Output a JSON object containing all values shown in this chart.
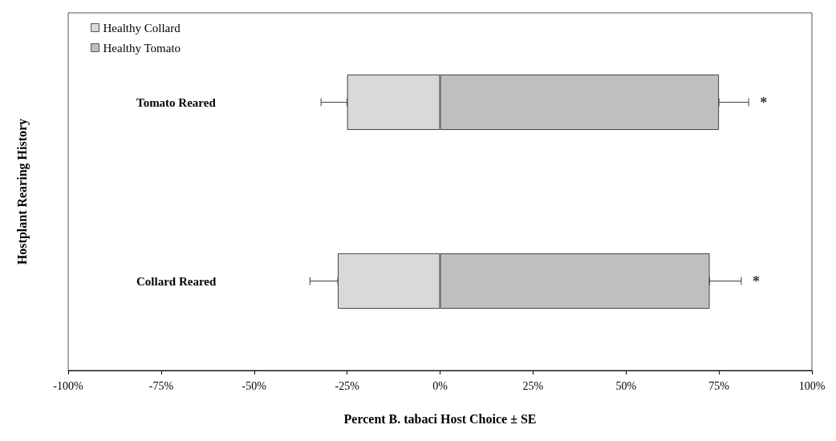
{
  "chart_data": {
    "type": "bar",
    "orientation": "horizontal",
    "stacked": true,
    "xlabel": "Percent B. tabaci Host Choice ± SE",
    "ylabel": "Hostplant Rearing History",
    "categories": [
      "Tomato Reared",
      "Collard Reared"
    ],
    "series": [
      {
        "name": "Healthy Collard",
        "color": "#d9d9d9",
        "values": [
          -25,
          -27.5
        ],
        "errors": [
          [
            -32,
            -25
          ],
          [
            -35,
            -27.5
          ]
        ]
      },
      {
        "name": "Healthy Tomato",
        "color": "#bfbfbf",
        "values": [
          75,
          72.5
        ],
        "errors": [
          [
            75,
            83
          ],
          [
            72.5,
            81
          ]
        ]
      }
    ],
    "xlim": [
      -100,
      100
    ],
    "xticks": [
      {
        "value": -100,
        "label": "-100%"
      },
      {
        "value": -75,
        "label": "-75%"
      },
      {
        "value": -50,
        "label": "-50%"
      },
      {
        "value": -25,
        "label": "-25%"
      },
      {
        "value": 0,
        "label": "0%"
      },
      {
        "value": 25,
        "label": "25%"
      },
      {
        "value": 50,
        "label": "50%"
      },
      {
        "value": 75,
        "label": "75%"
      },
      {
        "value": 100,
        "label": "100%"
      }
    ],
    "annotations": [
      "*",
      "*"
    ],
    "grid": false,
    "legend": "top left"
  }
}
